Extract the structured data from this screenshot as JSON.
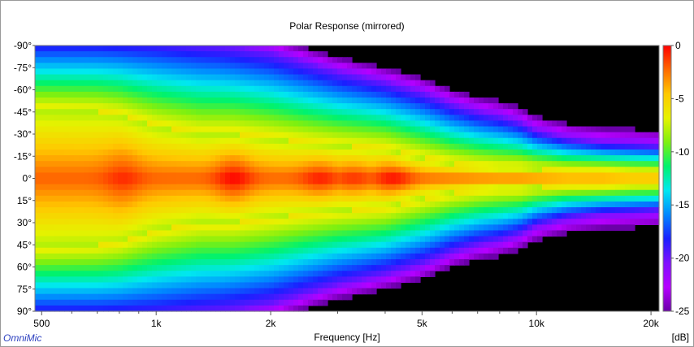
{
  "chart_data": {
    "type": "heatmap",
    "title": "Polar Response (mirrored)",
    "xlabel": "Frequency [Hz]",
    "ylabel": "",
    "x_scale": "log",
    "xlim": [
      480,
      21000
    ],
    "x_ticks": [
      {
        "value": 500,
        "label": "500"
      },
      {
        "value": 1000,
        "label": "1k"
      },
      {
        "value": 2000,
        "label": "2k"
      },
      {
        "value": 5000,
        "label": "5k"
      },
      {
        "value": 10000,
        "label": "10k"
      },
      {
        "value": 20000,
        "label": "20k"
      }
    ],
    "x_minor_ticks": [
      600,
      700,
      800,
      900,
      3000,
      4000,
      6000,
      7000,
      8000,
      9000
    ],
    "y_ticks": [
      "-90°",
      "-75°",
      "-60°",
      "-45°",
      "-30°",
      "-15°",
      "0°",
      "15°",
      "30°",
      "45°",
      "60°",
      "75°",
      "90°"
    ],
    "y_values": [
      -90,
      -75,
      -60,
      -45,
      -30,
      -15,
      0,
      15,
      30,
      45,
      60,
      75,
      90
    ],
    "colorbar": {
      "unit": "[dB]",
      "range": [
        -25,
        0
      ],
      "ticks": [
        {
          "value": 0,
          "label": "0"
        },
        {
          "value": -5,
          "label": "-5"
        },
        {
          "value": -10,
          "label": "-10"
        },
        {
          "value": -15,
          "label": "-15"
        },
        {
          "value": -20,
          "label": "-20"
        },
        {
          "value": -25,
          "label": "-25"
        }
      ],
      "colors": [
        "#ff0000",
        "#ff6a00",
        "#ffc800",
        "#e6f200",
        "#7ef010",
        "#00f26e",
        "#00e8f0",
        "#0088ff",
        "#1a20ff",
        "#7f10ff",
        "#b500ff",
        "#6a00a8"
      ]
    },
    "beamwidth_minus6dB_deg": {
      "frequencies": [
        480,
        500,
        700,
        800,
        1000,
        1300,
        1600,
        2000,
        2500,
        3000,
        3500,
        4000,
        5000,
        6000,
        7000,
        8000,
        9000,
        10000,
        12000,
        15000,
        18000,
        21000
      ],
      "values": [
        46,
        46,
        45,
        43,
        35,
        30,
        30,
        27,
        24,
        22,
        21,
        20,
        14,
        10,
        8,
        7,
        7,
        6,
        5,
        5,
        4,
        4
      ]
    },
    "beamwidth_minus20dB_deg": {
      "frequencies": [
        480,
        500,
        700,
        1000,
        1500,
        2000,
        3000,
        4000,
        5000,
        6000,
        7000,
        8000,
        9000,
        10000,
        12000,
        15000,
        18000,
        21000
      ],
      "values": [
        95,
        95,
        95,
        94,
        90,
        85,
        72,
        65,
        58,
        50,
        45,
        42,
        38,
        32,
        27,
        24,
        23,
        22
      ]
    },
    "peaks": [
      {
        "freq": 820,
        "angle": 0,
        "level": -1.5
      },
      {
        "freq": 1600,
        "angle": 0,
        "level": -2.5
      },
      {
        "freq": 2700,
        "angle": 0,
        "level": -2.0
      },
      {
        "freq": 3300,
        "angle": 0,
        "level": -1.5
      },
      {
        "freq": 4200,
        "angle": 0,
        "level": -2.5
      }
    ],
    "grid": false,
    "legend": "colorbar-right"
  },
  "brand": "OmniMic",
  "colors": {
    "floor": "#000000",
    "brand": "#2b3fbf",
    "frame": "#9a9a9a"
  }
}
